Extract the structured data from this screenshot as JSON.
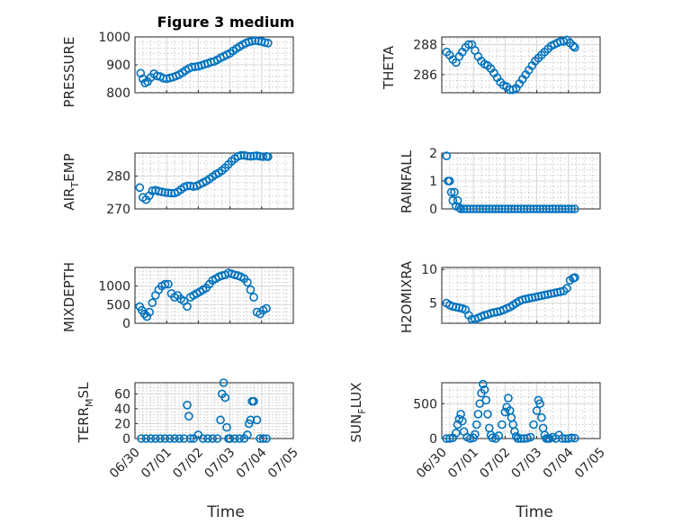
{
  "chart_data": [
    {
      "type": "scatter",
      "title": "Figure 3 medium",
      "ylabel": "PRESSURE",
      "ylim": [
        800,
        1000
      ],
      "yticks": [
        "800",
        "900",
        "1000"
      ],
      "xlim": [
        0,
        5
      ],
      "x": [
        0.18,
        0.25,
        0.32,
        0.4,
        0.5,
        0.6,
        0.7,
        0.8,
        0.9,
        1.0,
        1.1,
        1.2,
        1.3,
        1.4,
        1.5,
        1.6,
        1.7,
        1.8,
        1.9,
        2.0,
        2.1,
        2.2,
        2.3,
        2.4,
        2.5,
        2.6,
        2.7,
        2.8,
        2.9,
        3.0,
        3.1,
        3.2,
        3.3,
        3.4,
        3.5,
        3.6,
        3.7,
        3.8,
        3.9,
        4.0,
        4.1,
        4.2
      ],
      "y": [
        870,
        850,
        835,
        840,
        855,
        868,
        860,
        858,
        852,
        850,
        853,
        856,
        860,
        865,
        872,
        880,
        887,
        892,
        893,
        895,
        898,
        902,
        905,
        910,
        912,
        918,
        925,
        930,
        936,
        941,
        950,
        958,
        965,
        972,
        978,
        982,
        985,
        987,
        985,
        984,
        980,
        978
      ]
    },
    {
      "type": "scatter",
      "ylabel": "THETA",
      "ylim": [
        284.8,
        288.5
      ],
      "yticks": [
        "286",
        "288"
      ],
      "xlim": [
        0,
        5
      ],
      "x": [
        0.15,
        0.25,
        0.35,
        0.45,
        0.55,
        0.65,
        0.75,
        0.85,
        0.95,
        1.05,
        1.15,
        1.25,
        1.35,
        1.45,
        1.55,
        1.65,
        1.75,
        1.85,
        1.95,
        2.05,
        2.15,
        2.25,
        2.35,
        2.45,
        2.55,
        2.65,
        2.75,
        2.85,
        2.95,
        3.05,
        3.15,
        3.25,
        3.35,
        3.45,
        3.55,
        3.65,
        3.75,
        3.85,
        3.95,
        4.05,
        4.15,
        4.2
      ],
      "y": [
        287.5,
        287.3,
        287.0,
        286.8,
        287.2,
        287.5,
        287.8,
        288.0,
        288.0,
        287.6,
        287.2,
        286.9,
        286.7,
        286.6,
        286.4,
        286.1,
        285.8,
        285.5,
        285.3,
        285.2,
        285.0,
        285.0,
        285.1,
        285.4,
        285.7,
        286.0,
        286.3,
        286.6,
        286.9,
        287.1,
        287.3,
        287.5,
        287.7,
        287.9,
        288.0,
        288.1,
        288.2,
        288.2,
        288.3,
        288.1,
        287.9,
        287.8
      ]
    },
    {
      "type": "scatter",
      "ylabel": "AIR_TEMP",
      "ylim": [
        270,
        287
      ],
      "yticks": [
        "270",
        "280"
      ],
      "xlim": [
        0,
        5
      ],
      "x": [
        0.15,
        0.25,
        0.35,
        0.45,
        0.55,
        0.65,
        0.75,
        0.85,
        0.95,
        1.05,
        1.15,
        1.25,
        1.35,
        1.45,
        1.55,
        1.65,
        1.75,
        1.85,
        1.95,
        2.05,
        2.15,
        2.25,
        2.35,
        2.45,
        2.55,
        2.65,
        2.75,
        2.85,
        2.95,
        3.05,
        3.15,
        3.25,
        3.35,
        3.45,
        3.55,
        3.65,
        3.75,
        3.85,
        3.95,
        4.05,
        4.15,
        4.2
      ],
      "y": [
        276.5,
        273.5,
        272.8,
        274.0,
        275.5,
        275.7,
        275.4,
        275.2,
        275.0,
        274.9,
        274.8,
        274.8,
        275.2,
        275.9,
        276.6,
        277.0,
        277.0,
        276.8,
        277.0,
        277.5,
        278.0,
        278.5,
        279.1,
        279.8,
        280.5,
        281.0,
        281.7,
        282.5,
        283.5,
        284.5,
        285.3,
        286.0,
        286.3,
        286.3,
        286.1,
        286.0,
        286.1,
        286.2,
        286.0,
        285.9,
        286.0,
        285.9
      ]
    },
    {
      "type": "scatter",
      "ylabel": "RAINFALL",
      "ylim": [
        0,
        2
      ],
      "yticks": [
        "0",
        "1",
        "2"
      ],
      "xlim": [
        0,
        5
      ],
      "x": [
        0.15,
        0.2,
        0.25,
        0.3,
        0.35,
        0.4,
        0.45,
        0.5,
        0.55,
        0.6,
        0.7,
        0.8,
        0.9,
        1.0,
        1.1,
        1.2,
        1.3,
        1.4,
        1.5,
        1.6,
        1.7,
        1.8,
        1.9,
        2.0,
        2.1,
        2.2,
        2.3,
        2.4,
        2.5,
        2.6,
        2.7,
        2.8,
        2.9,
        3.0,
        3.1,
        3.2,
        3.3,
        3.4,
        3.5,
        3.6,
        3.7,
        3.8,
        3.9,
        4.0,
        4.1,
        4.2
      ],
      "y": [
        1.9,
        1.0,
        1.0,
        0.6,
        0.3,
        0.6,
        0.1,
        0.3,
        0.05,
        0,
        0,
        0,
        0,
        0,
        0,
        0,
        0,
        0,
        0,
        0,
        0,
        0,
        0,
        0,
        0,
        0,
        0,
        0,
        0,
        0,
        0,
        0,
        0,
        0,
        0,
        0,
        0,
        0,
        0,
        0,
        0,
        0,
        0,
        0,
        0,
        0
      ]
    },
    {
      "type": "scatter",
      "ylabel": "MIXDEPTH",
      "ylim": [
        0,
        1500
      ],
      "yticks": [
        "0",
        "500",
        "1000"
      ],
      "xlim": [
        0,
        5
      ],
      "x": [
        0.15,
        0.22,
        0.3,
        0.38,
        0.46,
        0.55,
        0.65,
        0.75,
        0.85,
        0.95,
        1.05,
        1.15,
        1.25,
        1.35,
        1.45,
        1.55,
        1.65,
        1.75,
        1.85,
        1.95,
        2.05,
        2.15,
        2.25,
        2.35,
        2.45,
        2.55,
        2.65,
        2.75,
        2.85,
        2.95,
        3.05,
        3.15,
        3.25,
        3.35,
        3.45,
        3.55,
        3.65,
        3.75,
        3.85,
        3.95,
        4.05,
        4.15
      ],
      "y": [
        450,
        350,
        250,
        180,
        300,
        550,
        750,
        900,
        1000,
        1050,
        1050,
        800,
        700,
        750,
        650,
        600,
        450,
        700,
        750,
        800,
        850,
        900,
        950,
        1050,
        1150,
        1200,
        1250,
        1280,
        1300,
        1350,
        1330,
        1300,
        1280,
        1250,
        1200,
        1100,
        900,
        700,
        300,
        250,
        350,
        400
      ]
    },
    {
      "type": "scatter",
      "ylabel": "H2OMIXRA",
      "ylim": [
        2,
        10.3
      ],
      "yticks": [
        "5",
        "10"
      ],
      "xlim": [
        0,
        5
      ],
      "x": [
        0.15,
        0.25,
        0.35,
        0.45,
        0.55,
        0.65,
        0.75,
        0.85,
        0.95,
        1.05,
        1.15,
        1.25,
        1.35,
        1.45,
        1.55,
        1.65,
        1.75,
        1.85,
        1.95,
        2.05,
        2.15,
        2.25,
        2.35,
        2.45,
        2.55,
        2.65,
        2.75,
        2.85,
        2.95,
        3.05,
        3.15,
        3.25,
        3.35,
        3.45,
        3.55,
        3.65,
        3.75,
        3.85,
        3.95,
        4.05,
        4.15,
        4.2
      ],
      "y": [
        5.0,
        4.7,
        4.5,
        4.4,
        4.3,
        4.2,
        4.0,
        3.2,
        2.6,
        2.6,
        2.8,
        3.0,
        3.2,
        3.3,
        3.5,
        3.6,
        3.7,
        3.8,
        4.0,
        4.2,
        4.4,
        4.7,
        5.0,
        5.3,
        5.5,
        5.6,
        5.7,
        5.8,
        5.9,
        6.0,
        6.1,
        6.2,
        6.3,
        6.4,
        6.5,
        6.6,
        6.7,
        6.8,
        7.2,
        8.4,
        8.7,
        8.8
      ]
    },
    {
      "type": "scatter",
      "ylabel": "TERR_MSL",
      "ylim": [
        0,
        75
      ],
      "yticks": [
        "0",
        "20",
        "40",
        "60"
      ],
      "xlim": [
        0,
        5
      ],
      "x": [
        0.2,
        0.35,
        0.5,
        0.65,
        0.8,
        0.95,
        1.1,
        1.25,
        1.4,
        1.55,
        1.65,
        1.7,
        1.75,
        1.85,
        2.0,
        2.15,
        2.3,
        2.45,
        2.6,
        2.7,
        2.75,
        2.8,
        2.85,
        2.9,
        2.95,
        3.0,
        3.15,
        3.3,
        3.45,
        3.55,
        3.6,
        3.65,
        3.7,
        3.75,
        3.85,
        3.95,
        4.05,
        4.15
      ],
      "y": [
        0,
        0,
        0,
        0,
        0,
        0,
        0,
        0,
        0,
        0,
        45,
        30,
        0,
        0,
        5,
        0,
        0,
        0,
        0,
        25,
        60,
        75,
        55,
        15,
        0,
        0,
        0,
        0,
        0,
        5,
        20,
        25,
        50,
        50,
        25,
        0,
        0,
        0
      ]
    },
    {
      "type": "scatter",
      "ylabel": "SUN_FLUX",
      "ylim": [
        0,
        800
      ],
      "yticks": [
        "0",
        "500"
      ],
      "xlim": [
        0,
        5
      ],
      "x": [
        0.15,
        0.25,
        0.35,
        0.45,
        0.5,
        0.55,
        0.6,
        0.65,
        0.7,
        0.8,
        0.9,
        1.0,
        1.05,
        1.1,
        1.15,
        1.2,
        1.25,
        1.3,
        1.35,
        1.4,
        1.45,
        1.5,
        1.55,
        1.6,
        1.7,
        1.8,
        1.9,
        2.0,
        2.05,
        2.1,
        2.15,
        2.2,
        2.25,
        2.3,
        2.35,
        2.4,
        2.5,
        2.6,
        2.7,
        2.8,
        2.9,
        3.0,
        3.05,
        3.1,
        3.15,
        3.2,
        3.25,
        3.3,
        3.35,
        3.4,
        3.5,
        3.6,
        3.7,
        3.8,
        3.9,
        4.0,
        4.1,
        4.2
      ],
      "y": [
        0,
        0,
        10,
        80,
        200,
        280,
        350,
        250,
        100,
        20,
        0,
        10,
        60,
        200,
        350,
        500,
        650,
        780,
        700,
        550,
        350,
        150,
        50,
        10,
        0,
        40,
        200,
        380,
        450,
        580,
        400,
        300,
        200,
        100,
        30,
        0,
        0,
        0,
        5,
        20,
        200,
        400,
        550,
        500,
        300,
        150,
        50,
        0,
        0,
        0,
        20,
        0,
        50,
        0,
        0,
        0,
        10,
        5
      ]
    }
  ],
  "x_axis": {
    "ticks": [
      "06/30",
      "07/01",
      "07/02",
      "07/03",
      "07/04",
      "07/05"
    ],
    "label": "Time"
  },
  "colors": {
    "marker": "#0072BD"
  }
}
